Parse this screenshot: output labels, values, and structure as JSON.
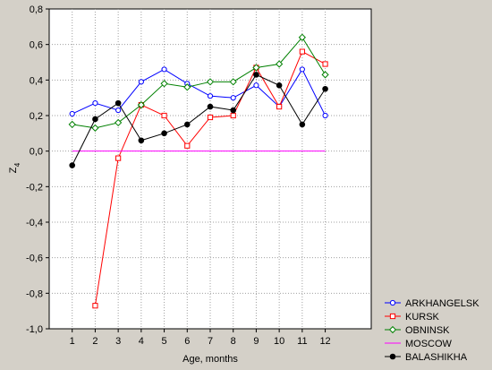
{
  "chart_data": {
    "type": "line",
    "title": "",
    "xlabel": "Age, months",
    "ylabel": "Z",
    "ylabel_subscript": "4",
    "x": [
      1,
      2,
      3,
      4,
      5,
      6,
      7,
      8,
      9,
      10,
      11,
      12
    ],
    "xlim": [
      0,
      14
    ],
    "ylim": [
      -1.0,
      0.8
    ],
    "yticks": [
      "-1,0",
      "-0,8",
      "-0,6",
      "-0,4",
      "-0,2",
      "0,0",
      "0,2",
      "0,4",
      "0,6",
      "0,8"
    ],
    "xticks": [
      "1",
      "2",
      "3",
      "4",
      "5",
      "6",
      "7",
      "8",
      "9",
      "10",
      "11",
      "12"
    ],
    "grid": true,
    "legend_position": "bottom-right",
    "series": [
      {
        "name": "ARKHANGELSK",
        "color": "#0000ff",
        "marker": "circle-open",
        "values": [
          0.21,
          0.27,
          0.23,
          0.39,
          0.46,
          0.38,
          0.31,
          0.3,
          0.37,
          0.25,
          0.46,
          0.2
        ]
      },
      {
        "name": "KURSK",
        "color": "#ff0000",
        "marker": "square-open",
        "values": [
          null,
          -0.87,
          -0.04,
          0.26,
          0.2,
          0.03,
          0.19,
          0.2,
          0.47,
          0.25,
          0.56,
          0.49
        ]
      },
      {
        "name": "OBNINSK",
        "color": "#008000",
        "marker": "diamond-open",
        "values": [
          0.15,
          0.13,
          0.16,
          0.26,
          0.38,
          0.36,
          0.39,
          0.39,
          0.47,
          0.49,
          0.64,
          0.43
        ]
      },
      {
        "name": "MOSCOW",
        "color": "#ff00ff",
        "marker": "none",
        "values": [
          0.0,
          0.0,
          0.0,
          0.0,
          0.0,
          0.0,
          0.0,
          0.0,
          0.0,
          0.0,
          0.0,
          0.0
        ]
      },
      {
        "name": "BALASHIKHA",
        "color": "#000000",
        "marker": "circle-filled",
        "values": [
          -0.08,
          0.18,
          0.27,
          0.06,
          0.1,
          0.15,
          0.25,
          0.23,
          0.43,
          0.37,
          0.15,
          0.35
        ]
      }
    ]
  }
}
